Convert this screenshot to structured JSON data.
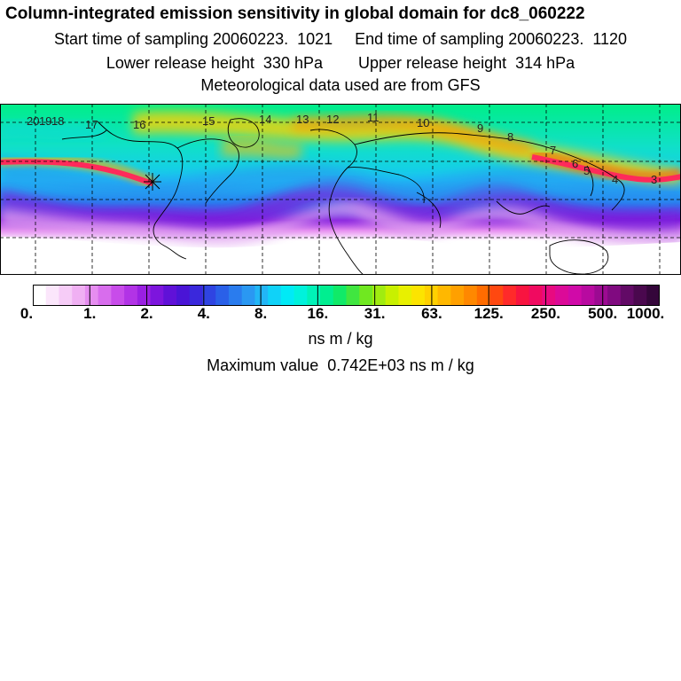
{
  "header": {
    "title": "Column-integrated emission sensitivity in global domain for dc8_060222",
    "line2": "Start time of sampling 20060223.  1021     End time of sampling 20060223.  1120",
    "line3": "Lower release height  330 hPa        Upper release height  314 hPa",
    "line4": "Meteorological data used are from GFS"
  },
  "map": {
    "trajectory_labels": [
      "20",
      "19",
      "18",
      "17",
      "16",
      "15",
      "14",
      "13",
      "12",
      "11",
      "10",
      "9",
      "8",
      "7",
      "6",
      "5",
      "4",
      "3"
    ],
    "colors": {
      "plume": "#ff2a5a",
      "trajectory": "#ff5a8a",
      "grid": "#000000"
    }
  },
  "colorbar": {
    "tick_labels": [
      "0.",
      "1.",
      "2.",
      "4.",
      "8.",
      "16.",
      "31.",
      "63.",
      "125.",
      "250.",
      "500.",
      "1000."
    ],
    "colors": [
      "#ffffff",
      "#fbe6fb",
      "#f6ccf7",
      "#f0b0f3",
      "#e68df0",
      "#d86ded",
      "#c84cea",
      "#b233e6",
      "#9a20e2",
      "#7d15dd",
      "#6011d8",
      "#4a14d6",
      "#3a28dc",
      "#2f44e2",
      "#2a60e8",
      "#2a7cee",
      "#2a98f2",
      "#22b6f6",
      "#10d2f8",
      "#00eaf6",
      "#00f2dc",
      "#00f2b8",
      "#00ee90",
      "#10ea68",
      "#40e640",
      "#70e820",
      "#a0ec10",
      "#c8f000",
      "#e8f000",
      "#fce400",
      "#ffd000",
      "#ffb800",
      "#ffa000",
      "#ff8800",
      "#ff6c00",
      "#ff4810",
      "#ff2a2a",
      "#f81440",
      "#f00a60",
      "#e80a80",
      "#dc0a98",
      "#d00aa8",
      "#b80aa0",
      "#9c0a92",
      "#800a80",
      "#620a66",
      "#4a084e",
      "#34063a"
    ]
  },
  "units": "ns m / kg",
  "max_value": "Maximum value  0.742E+03 ns m / kg"
}
